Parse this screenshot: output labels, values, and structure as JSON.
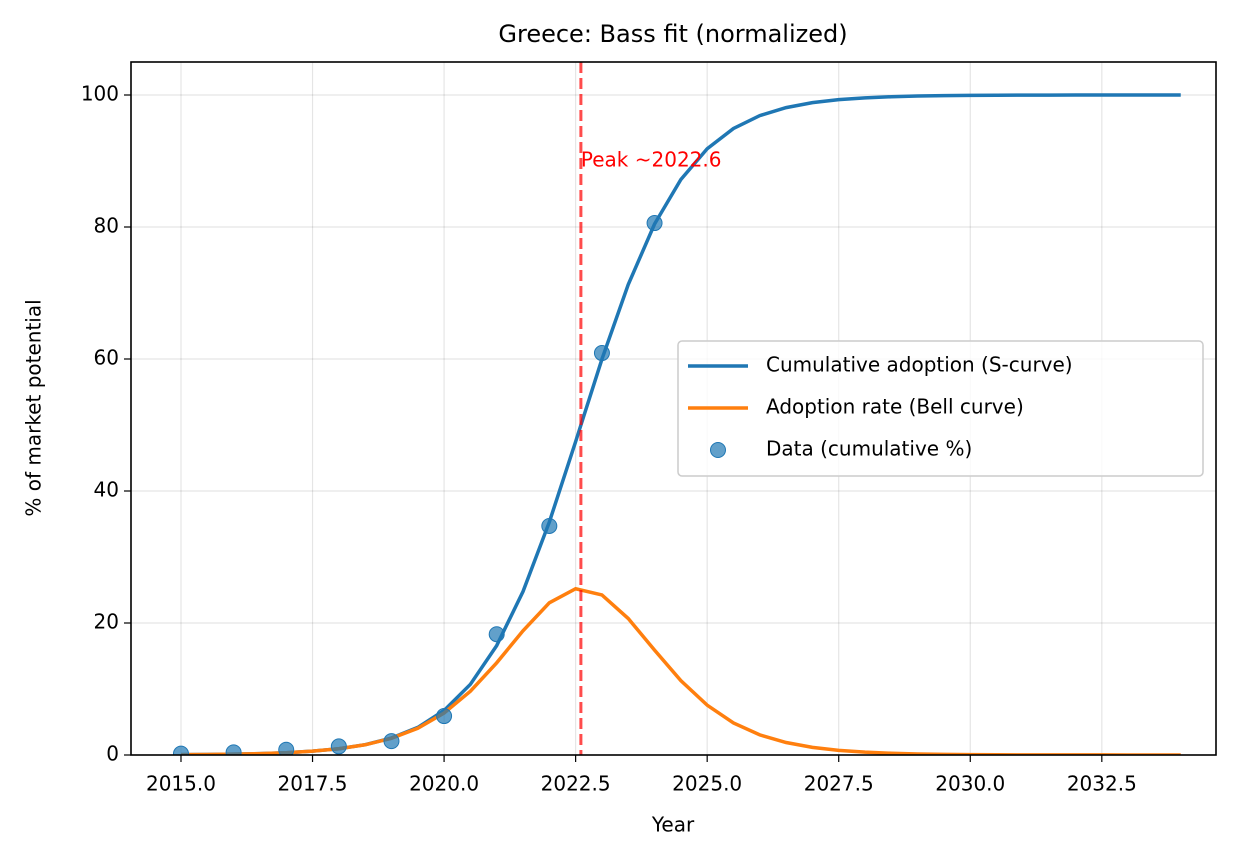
{
  "chart_data": {
    "type": "line",
    "title": "Greece: Bass fit (normalized)",
    "x_label": "Year",
    "y_label": "% of market potential",
    "xlim": [
      2014.05,
      2034.67
    ],
    "ylim": [
      0,
      105
    ],
    "xticks": [
      {
        "value": 2015,
        "label": "2015.0"
      },
      {
        "value": 2017.5,
        "label": "2017.5"
      },
      {
        "value": 2020,
        "label": "2020.0"
      },
      {
        "value": 2022.5,
        "label": "2022.5"
      },
      {
        "value": 2025,
        "label": "2025.0"
      },
      {
        "value": 2027.5,
        "label": "2027.5"
      },
      {
        "value": 2030,
        "label": "2030.0"
      },
      {
        "value": 2032.5,
        "label": "2032.5"
      }
    ],
    "yticks": [
      0,
      20,
      40,
      60,
      80,
      100
    ],
    "grid": true,
    "legend": "center right",
    "series": [
      {
        "name": "Cumulative adoption (S-curve)",
        "type": "line",
        "color": "#1f77b4",
        "x": [
          2015,
          2015.5,
          2016,
          2016.5,
          2017,
          2017.5,
          2018,
          2018.5,
          2019,
          2019.5,
          2020,
          2020.5,
          2021,
          2021.5,
          2022,
          2022.5,
          2023,
          2023.5,
          2024,
          2024.5,
          2025,
          2025.5,
          2026,
          2026.5,
          2027,
          2027.5,
          2028,
          2028.5,
          2029,
          2029.5,
          2030,
          2030.5,
          2031,
          2031.5,
          2032,
          2032.5,
          2033,
          2033.5,
          2034
        ],
        "values": [
          0.05,
          0.08,
          0.13,
          0.21,
          0.35,
          0.58,
          0.95,
          1.56,
          2.57,
          4.18,
          6.75,
          10.71,
          16.58,
          24.77,
          35.29,
          47.48,
          59.97,
          71.28,
          80.45,
          87.2,
          91.86,
          94.93,
          96.88,
          98.09,
          98.84,
          99.3,
          99.57,
          99.74,
          99.84,
          99.91,
          99.94,
          99.97,
          99.98,
          99.99,
          100,
          100,
          100,
          100,
          100
        ]
      },
      {
        "name": "Adoption rate (Bell curve)",
        "type": "line",
        "color": "#ff7f0e",
        "x": [
          2015,
          2015.5,
          2016,
          2016.5,
          2017,
          2017.5,
          2018,
          2018.5,
          2019,
          2019.5,
          2020,
          2020.5,
          2021,
          2021.5,
          2022,
          2022.5,
          2023,
          2023.5,
          2024,
          2024.5,
          2025,
          2025.5,
          2026,
          2026.5,
          2027,
          2027.5,
          2028,
          2028.5,
          2029,
          2029.5,
          2030,
          2030.5,
          2031,
          2031.5,
          2032,
          2032.5,
          2033,
          2033.5,
          2034
        ],
        "values": [
          0.05,
          0.08,
          0.13,
          0.21,
          0.35,
          0.58,
          0.95,
          1.55,
          2.53,
          4.05,
          6.36,
          9.66,
          13.97,
          18.82,
          23.06,
          25.19,
          24.25,
          20.68,
          15.89,
          11.27,
          7.55,
          4.86,
          3.05,
          1.89,
          1.16,
          0.7,
          0.43,
          0.26,
          0.16,
          0.1,
          0.06,
          0.04,
          0.02,
          0.01,
          0.01,
          0.01,
          0,
          0,
          0
        ]
      },
      {
        "name": "Data (cumulative %)",
        "type": "scatter",
        "color": "#1f77b4",
        "x": [
          2015,
          2016,
          2017,
          2018,
          2019,
          2020,
          2021,
          2022,
          2023,
          2024
        ],
        "values": [
          0.2,
          0.4,
          0.8,
          1.3,
          2.1,
          5.9,
          18.3,
          34.7,
          60.9,
          80.6
        ]
      }
    ],
    "peak": {
      "x": 2022.6,
      "color": "#ff0000",
      "text": "Peak ~2022.6",
      "text_y": 90
    }
  }
}
